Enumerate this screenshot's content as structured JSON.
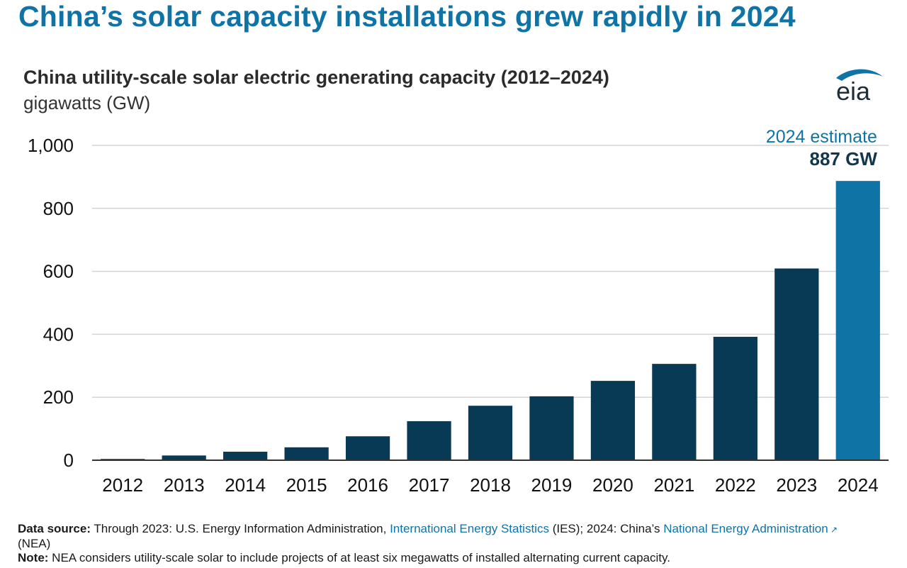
{
  "headline": "China’s solar capacity installations grew rapidly in 2024",
  "logo": {
    "icon": "eia-logo-icon",
    "text": "eia",
    "color": "#0f73a6"
  },
  "chart_data": {
    "type": "bar",
    "title": "China utility-scale solar electric generating capacity (2012–2024)",
    "subtitle": "gigawatts (GW)",
    "categories": [
      "2012",
      "2013",
      "2014",
      "2015",
      "2016",
      "2017",
      "2018",
      "2019",
      "2020",
      "2021",
      "2022",
      "2023",
      "2024"
    ],
    "values": [
      4,
      15,
      27,
      41,
      76,
      124,
      173,
      203,
      252,
      306,
      392,
      609,
      887
    ],
    "ylim": [
      0,
      1000
    ],
    "yticks": [
      0,
      200,
      400,
      600,
      800,
      1000
    ],
    "ytick_labels": [
      "0",
      "200",
      "400",
      "600",
      "800",
      "1,000"
    ],
    "grid": true,
    "colors": {
      "default": "#083a55",
      "highlight": "#0f73a6",
      "grid": "#d4d4d4",
      "axis": "#333333"
    },
    "highlight_index": 12,
    "annotation": {
      "line1": "2024 estimate",
      "line2": "887 GW"
    }
  },
  "footer": {
    "source_label": "Data source:",
    "source_text_1": " Through 2023: U.S. Energy Information Administration, ",
    "source_link_1": "International Energy Statistics",
    "source_text_2": " (IES); 2024: China’s ",
    "source_link_2": "National Energy Administration",
    "source_link_icon": "external-link-icon",
    "source_text_3": "(NEA)",
    "note_label": "Note:",
    "note_text": " NEA considers utility-scale solar to include projects of at least six megawatts of installed alternating current capacity."
  }
}
